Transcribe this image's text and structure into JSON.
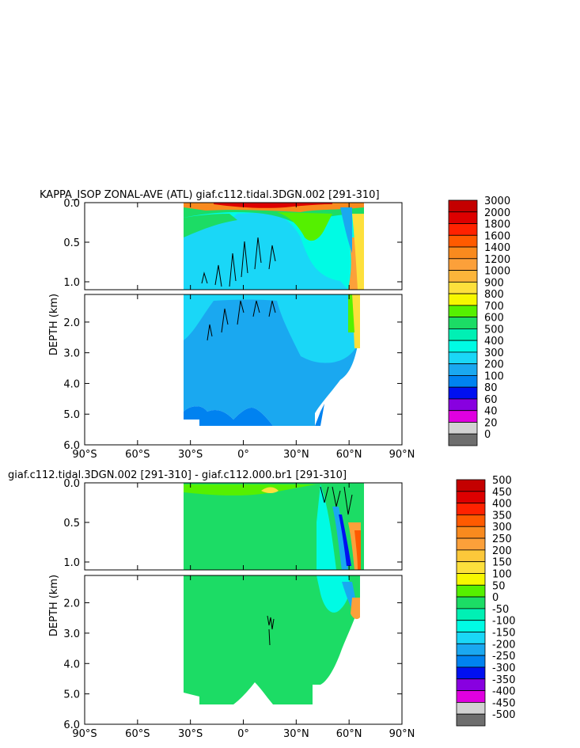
{
  "chart_data": [
    {
      "type": "heatmap",
      "title": "KAPPA_ISOP ZONAL-AVE (ATL) giaf.c112.tidal.3DGN.002 [291-310]",
      "ylabel": "DEPTH (km)",
      "x_ticks": [
        "90°S",
        "60°S",
        "30°S",
        "0°",
        "30°N",
        "60°N",
        "90°N"
      ],
      "x_values": [
        -90,
        -60,
        -30,
        0,
        30,
        60,
        90
      ],
      "xlim": [
        -90,
        90
      ],
      "upper_ticks": [
        "0.0",
        "0.5",
        "1.0"
      ],
      "upper_values": [
        0,
        0.5,
        1.0
      ],
      "upper_ylim": [
        0,
        1.1
      ],
      "lower_ticks": [
        "2.0",
        "3.0",
        "4.0",
        "5.0",
        "6.0"
      ],
      "lower_values": [
        2,
        3,
        4,
        5,
        6
      ],
      "lower_ylim": [
        1.1,
        6.0
      ],
      "colorbar_labels": [
        "3000",
        "2000",
        "1800",
        "1600",
        "1400",
        "1200",
        "1000",
        "900",
        "800",
        "700",
        "600",
        "500",
        "400",
        "300",
        "200",
        "100",
        "80",
        "60",
        "40",
        "20",
        "0"
      ],
      "colorbar_colors": [
        "#c40000",
        "#dd0000",
        "#ff2200",
        "#ff5a00",
        "#f98a1e",
        "#fca03a",
        "#fcb53a",
        "#fde03c",
        "#f7f700",
        "#55f000",
        "#1cdc65",
        "#00f0b4",
        "#00fbe4",
        "#1ad7f7",
        "#1aa8f0",
        "#0082f0",
        "#0010f0",
        "#8800e0",
        "#e000e0",
        "#d2d2d2",
        "#6e6e6e"
      ]
    },
    {
      "type": "heatmap",
      "title": "giaf.c112.tidal.3DGN.002 [291-310] - giaf.c112.000.br1 [291-310]",
      "ylabel": "DEPTH (km)",
      "x_ticks": [
        "90°S",
        "60°S",
        "30°S",
        "0°",
        "30°N",
        "60°N",
        "90°N"
      ],
      "x_values": [
        -90,
        -60,
        -30,
        0,
        30,
        60,
        90
      ],
      "xlim": [
        -90,
        90
      ],
      "upper_ticks": [
        "0.0",
        "0.5",
        "1.0"
      ],
      "upper_values": [
        0,
        0.5,
        1.0
      ],
      "upper_ylim": [
        0,
        1.1
      ],
      "lower_ticks": [
        "2.0",
        "3.0",
        "4.0",
        "5.0",
        "6.0"
      ],
      "lower_values": [
        2,
        3,
        4,
        5,
        6
      ],
      "lower_ylim": [
        1.1,
        6.0
      ],
      "colorbar_labels": [
        "500",
        "450",
        "400",
        "350",
        "300",
        "250",
        "200",
        "150",
        "100",
        "50",
        "0",
        "-50",
        "-100",
        "-150",
        "-200",
        "-250",
        "-300",
        "-350",
        "-400",
        "-450",
        "-500"
      ],
      "colorbar_colors": [
        "#c40000",
        "#dd0000",
        "#ff2200",
        "#ff5a00",
        "#f98a1e",
        "#fca03a",
        "#fcc83a",
        "#fde03c",
        "#f7f700",
        "#55f000",
        "#1cdc65",
        "#00f0b4",
        "#00fbe4",
        "#1ad7f7",
        "#1aa8f0",
        "#0082f0",
        "#0010f0",
        "#8800e0",
        "#e000e0",
        "#d2d2d2",
        "#6e6e6e"
      ]
    }
  ]
}
